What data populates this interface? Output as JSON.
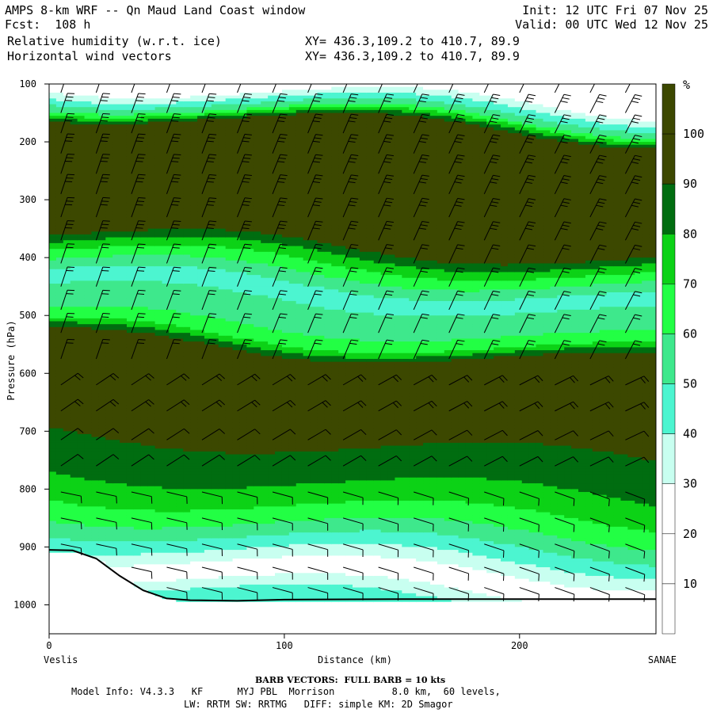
{
  "header": {
    "left_line1": "AMPS 8-km WRF -- Qn Maud Land Coast window",
    "left_line2": "Fcst:  108 h",
    "field1": "Relative humidity (w.r.t. ice)",
    "field2": "Horizontal wind vectors",
    "init": "Init: 12 UTC Fri 07 Nov 25",
    "valid": "Valid: 00 UTC Wed 12 Nov 25",
    "xy1": "XY= 436.3,109.2 to 410.7, 89.9",
    "xy2": "XY= 436.3,109.2 to 410.7, 89.9"
  },
  "footer": {
    "barb": "BARB VECTORS:  FULL BARB = 10 kts",
    "model": "Model Info: V4.3.3   KF      MYJ PBL  Morrison          8.0 km,  60 levels,",
    "model2": "LW: RRTM SW: RRTMG   DIFF: simple KM: 2D Smagor"
  },
  "chart_data": {
    "type": "heatmap",
    "xlabel": "Distance (km)",
    "ylabel": "Pressure (hPa)",
    "x_left_label": "Veslis",
    "x_right_label": "SANAE",
    "xlim": [
      0,
      258
    ],
    "ylim": [
      1050,
      100
    ],
    "x_ticks": [
      0,
      100,
      200
    ],
    "y_ticks": [
      100,
      200,
      300,
      400,
      500,
      600,
      700,
      800,
      900,
      1000
    ],
    "colorbar": {
      "unit": "%",
      "levels": [
        10,
        20,
        30,
        40,
        50,
        60,
        70,
        80,
        90,
        100
      ],
      "colors": [
        "#ffffff",
        "#ffffff",
        "#ffffff",
        "#c8fff0",
        "#4cf5d0",
        "#3ee88c",
        "#22ff44",
        "#0cd216",
        "#006d10",
        "#3c4800",
        "#3c4800"
      ]
    },
    "terrain_profile": [
      [
        0,
        905
      ],
      [
        10,
        906
      ],
      [
        20,
        920
      ],
      [
        30,
        950
      ],
      [
        40,
        975
      ],
      [
        50,
        989
      ],
      [
        60,
        992
      ],
      [
        80,
        993
      ],
      [
        100,
        991
      ],
      [
        150,
        990
      ],
      [
        200,
        990
      ],
      [
        258,
        990
      ]
    ],
    "rh_profile_mid": [
      [
        100,
        10
      ],
      [
        150,
        60
      ],
      [
        170,
        95
      ],
      [
        200,
        100
      ],
      [
        250,
        95
      ],
      [
        300,
        101
      ],
      [
        350,
        97
      ],
      [
        380,
        90
      ],
      [
        400,
        75
      ],
      [
        450,
        48
      ],
      [
        500,
        52
      ],
      [
        540,
        68
      ],
      [
        560,
        90
      ],
      [
        600,
        101
      ],
      [
        650,
        95
      ],
      [
        700,
        92
      ],
      [
        750,
        88
      ],
      [
        800,
        78
      ],
      [
        850,
        65
      ],
      [
        900,
        45
      ],
      [
        950,
        22
      ],
      [
        985,
        40
      ]
    ],
    "barb_columns_x": [
      5,
      20,
      35,
      50,
      65,
      80,
      95,
      110,
      125,
      140,
      155,
      170,
      185,
      200,
      215,
      230,
      245
    ],
    "barb_levels": [
      115,
      150,
      185,
      220,
      255,
      290,
      330,
      370,
      410,
      450,
      490,
      530,
      575,
      620,
      665,
      715,
      760,
      805,
      850,
      895,
      935,
      970
    ]
  }
}
